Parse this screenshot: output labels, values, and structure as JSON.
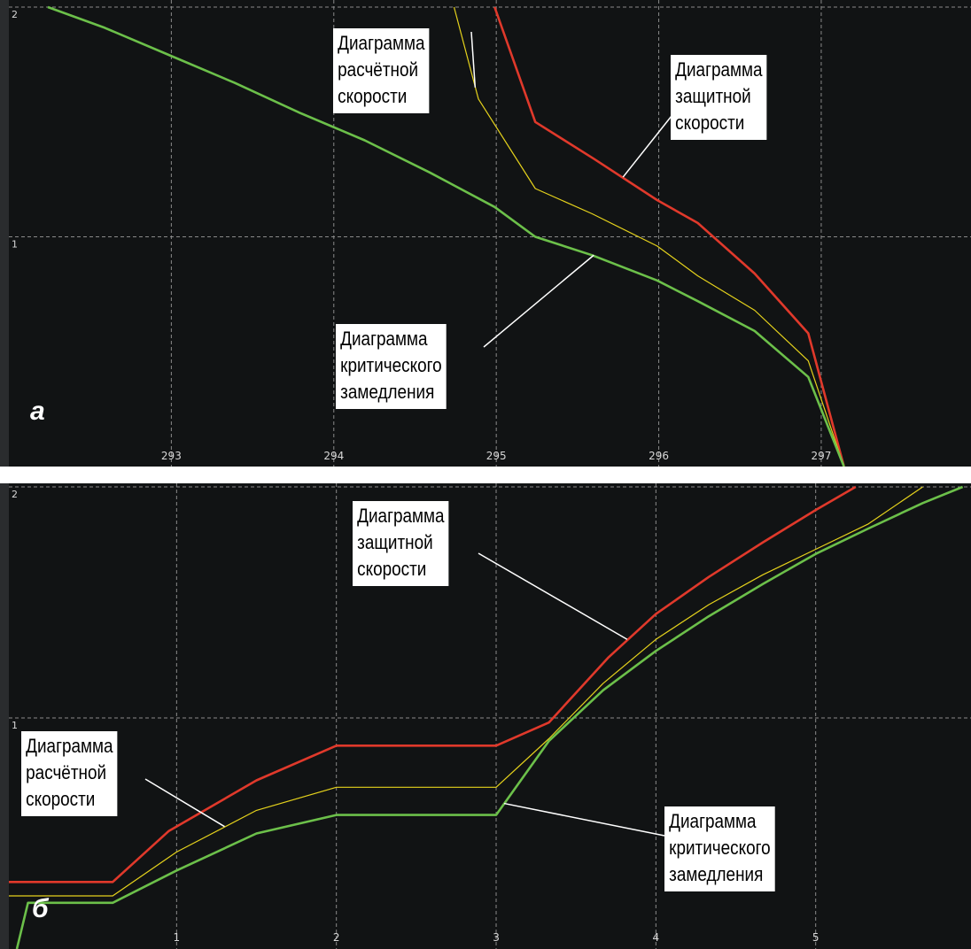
{
  "colors": {
    "background": "#111314",
    "grid": "#8a8a8a",
    "axis_text": "#d8d8d8",
    "protective": "#e0392b",
    "calculated": "#e5d21c",
    "critical": "#6cc04a"
  },
  "chart_data": [
    {
      "type": "line",
      "panel_label": "а",
      "xlim": [
        292.0,
        297.9
      ],
      "ylim": [
        0,
        2
      ],
      "x_ticks": [
        "293",
        "294",
        "295",
        "296",
        "297"
      ],
      "y_ticks": [
        "1",
        "2"
      ],
      "grid": true,
      "series": [
        {
          "key": "protective",
          "color": "#e0392b",
          "x": [
            294.99,
            295.24,
            295.6,
            295.99,
            296.24,
            296.59,
            296.92,
            297.14
          ],
          "y": [
            2.0,
            1.5,
            1.34,
            1.16,
            1.06,
            0.84,
            0.58,
            0.0
          ]
        },
        {
          "key": "calculated",
          "color": "#e5d21c",
          "x": [
            294.74,
            294.89,
            295.24,
            295.59,
            295.99,
            296.24,
            296.59,
            296.92,
            297.14
          ],
          "y": [
            2.0,
            1.6,
            1.21,
            1.1,
            0.96,
            0.83,
            0.68,
            0.46,
            0.0
          ]
        },
        {
          "key": "critical",
          "color": "#6cc04a",
          "x": [
            292.24,
            292.59,
            292.99,
            293.39,
            293.79,
            294.19,
            294.59,
            294.99,
            295.24,
            295.59,
            295.99,
            296.24,
            296.59,
            296.92,
            297.14
          ],
          "y": [
            2.0,
            1.91,
            1.79,
            1.67,
            1.54,
            1.42,
            1.28,
            1.13,
            1.0,
            0.92,
            0.81,
            0.72,
            0.59,
            0.39,
            0.0
          ]
        }
      ],
      "annotations": [
        {
          "text": "Диаграмма\nрасчётной\nскорости",
          "target": "calculated"
        },
        {
          "text": "Диаграмма\nзащитной\nскорости",
          "target": "protective"
        },
        {
          "text": "Диаграмма\nкритического\nзамедления",
          "target": "critical"
        }
      ]
    },
    {
      "type": "line",
      "panel_label": "б",
      "xlim": [
        -0.05,
        5.95
      ],
      "ylim": [
        0,
        2
      ],
      "x_ticks": [
        "1",
        "2",
        "3",
        "4",
        "5"
      ],
      "y_ticks": [
        "1",
        "2"
      ],
      "grid": true,
      "series": [
        {
          "key": "protective",
          "color": "#e0392b",
          "x": [
            -0.05,
            0.6,
            0.95,
            1.5,
            2.0,
            3.0,
            3.33,
            3.7,
            4.0,
            4.33,
            4.67,
            5.0,
            5.25
          ],
          "y": [
            0.29,
            0.29,
            0.51,
            0.73,
            0.88,
            0.88,
            0.98,
            1.26,
            1.45,
            1.61,
            1.76,
            1.9,
            2.0
          ]
        },
        {
          "key": "calculated",
          "color": "#e5d21c",
          "x": [
            -0.05,
            0.6,
            1.0,
            1.5,
            2.0,
            3.0,
            3.33,
            3.67,
            4.0,
            4.33,
            4.67,
            5.0,
            5.33,
            5.67
          ],
          "y": [
            0.23,
            0.23,
            0.42,
            0.6,
            0.7,
            0.7,
            0.91,
            1.15,
            1.34,
            1.49,
            1.62,
            1.73,
            1.84,
            2.0
          ]
        },
        {
          "key": "critical",
          "color": "#6cc04a",
          "x": [
            0.0,
            0.07,
            0.6,
            1.0,
            1.5,
            2.0,
            3.0,
            3.33,
            3.67,
            4.0,
            4.33,
            4.67,
            5.0,
            5.33,
            5.67,
            5.92
          ],
          "y": [
            0.0,
            0.2,
            0.2,
            0.34,
            0.5,
            0.58,
            0.58,
            0.9,
            1.12,
            1.29,
            1.44,
            1.58,
            1.71,
            1.82,
            1.93,
            2.0
          ]
        }
      ],
      "annotations": [
        {
          "text": "Диаграмма\nзащитной\nскорости",
          "target": "protective"
        },
        {
          "text": "Диаграмма\nрасчётной\nскорости",
          "target": "calculated"
        },
        {
          "text": "Диаграмма\nкритического\nзамедления",
          "target": "critical"
        }
      ]
    }
  ]
}
